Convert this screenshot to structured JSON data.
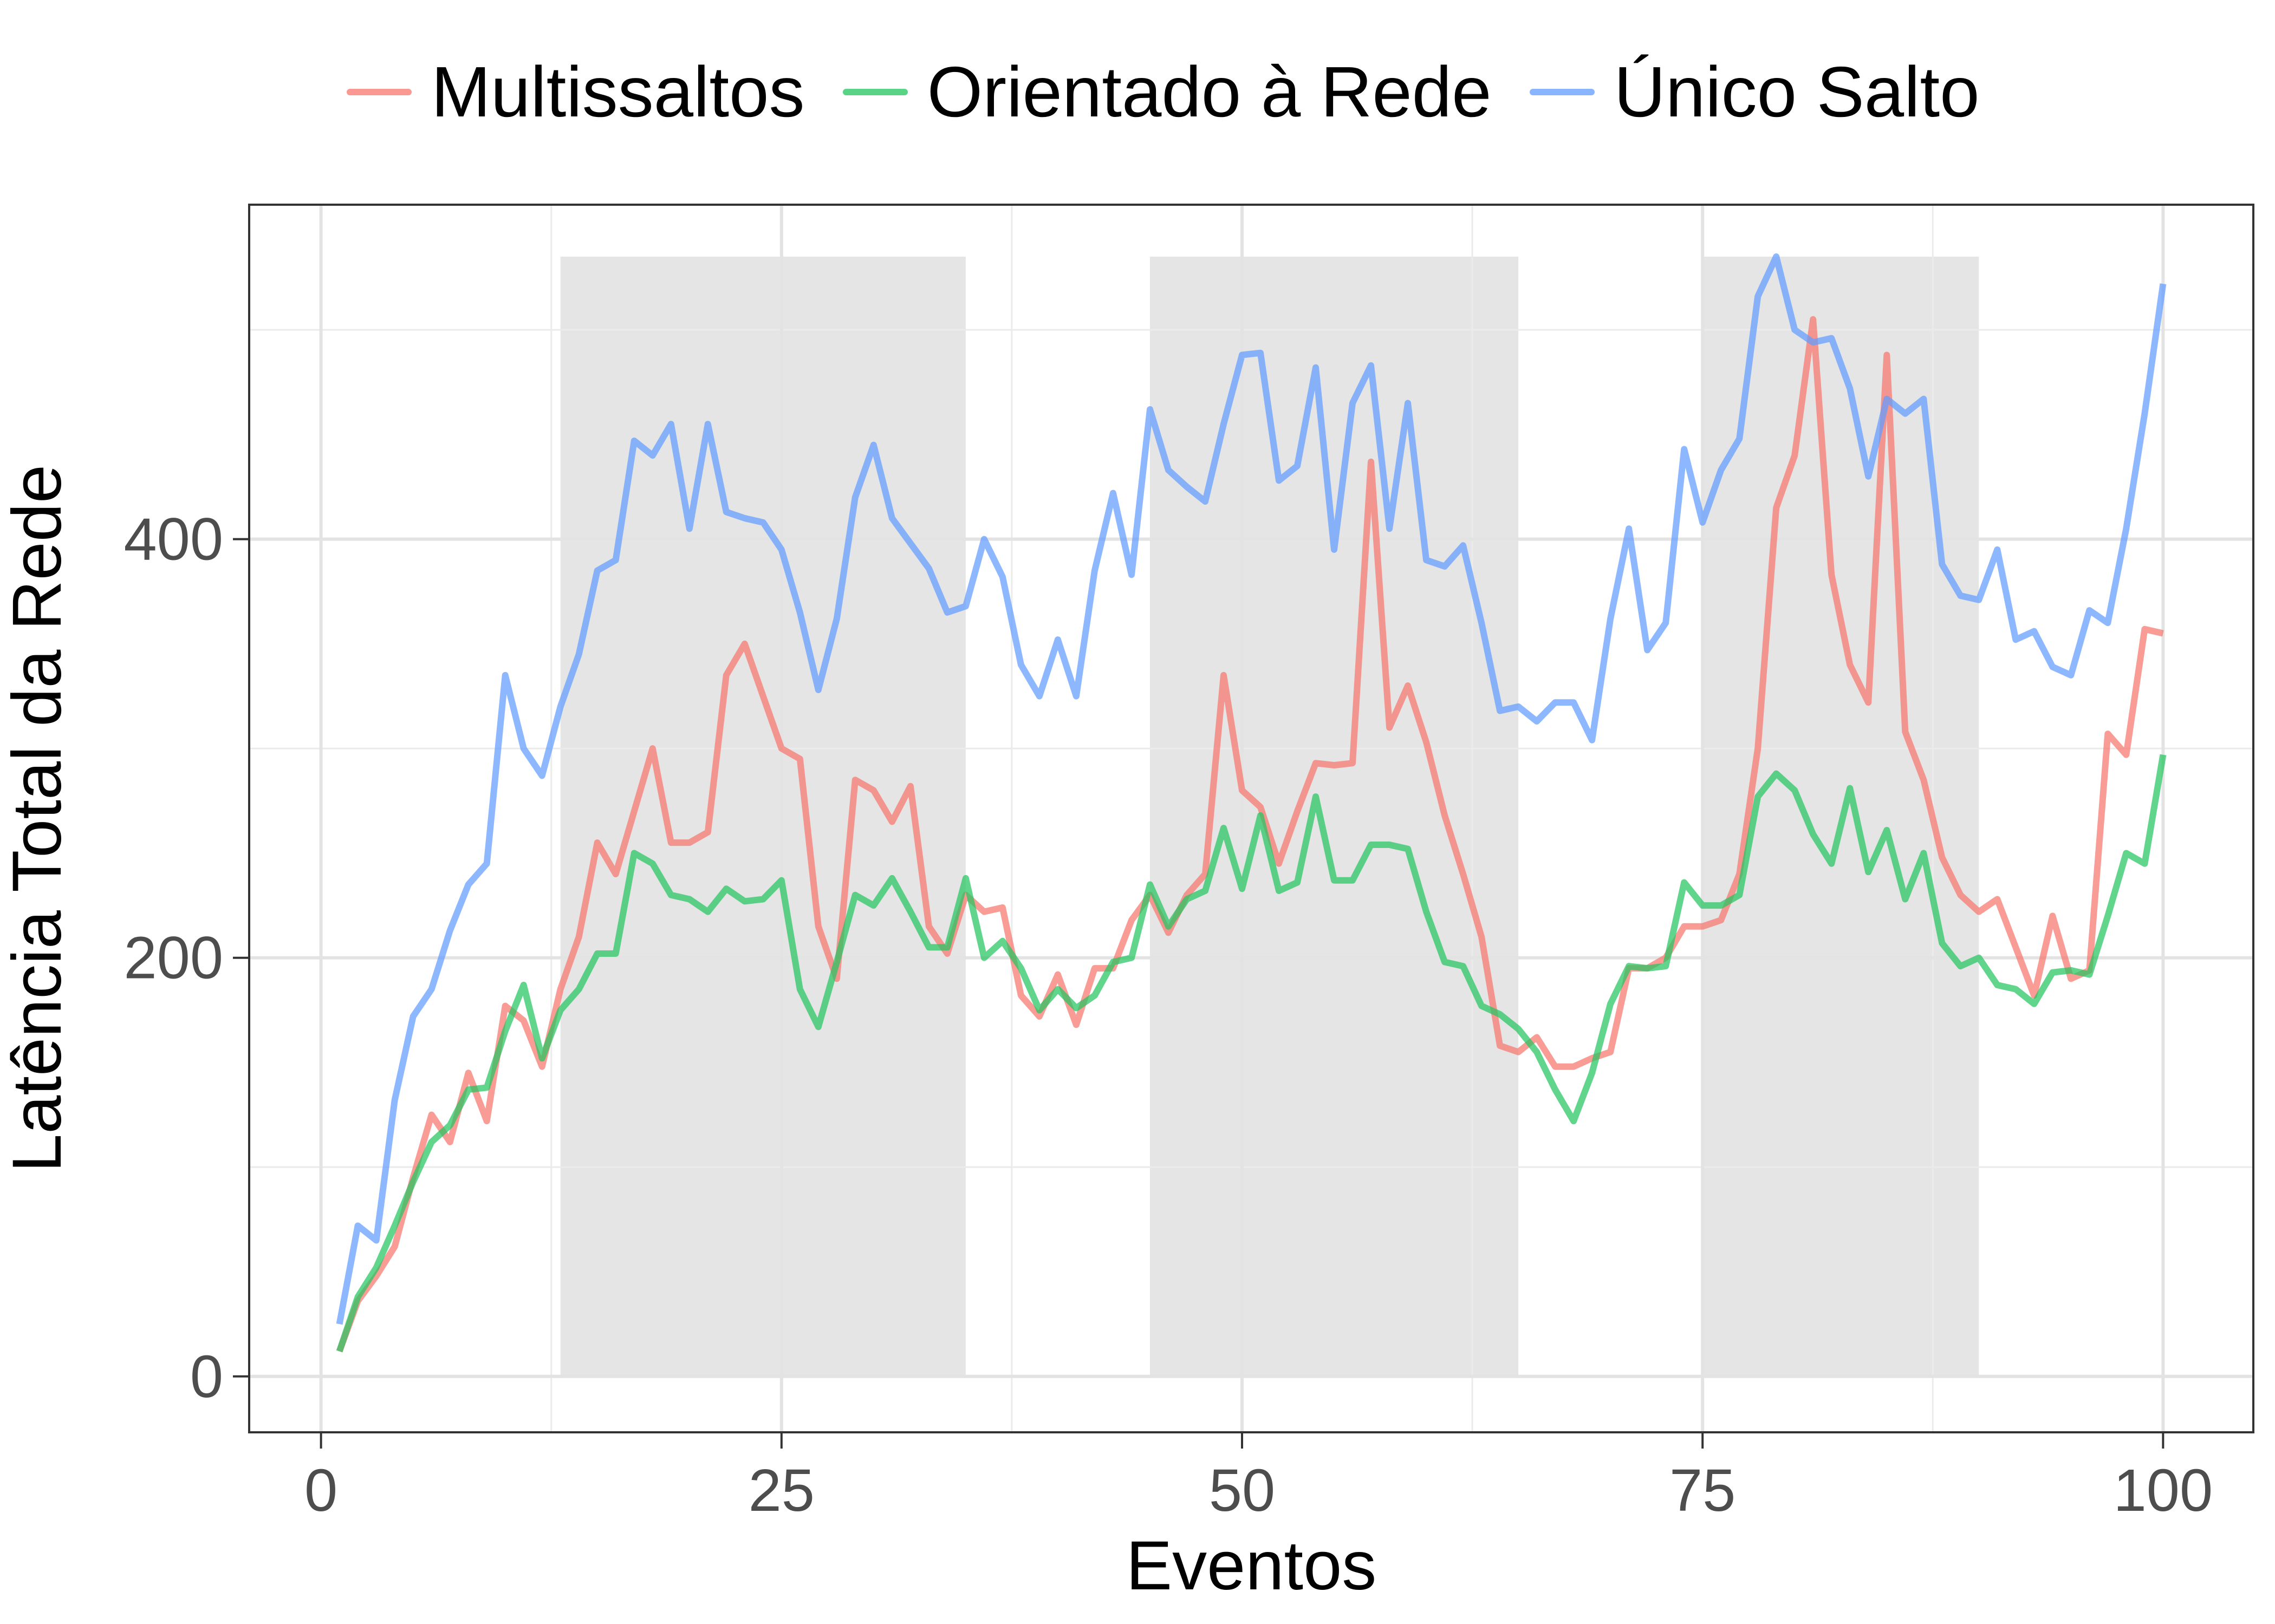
{
  "chart_data": {
    "type": "line",
    "xlabel": "Eventos",
    "ylabel": "Latência Total da Rede",
    "xlim": [
      -3.9,
      104.9
    ],
    "ylim": [
      -26.7,
      559.8
    ],
    "x_ticks": [
      "0",
      "25",
      "50",
      "75",
      "100"
    ],
    "x_tick_values": [
      0,
      25,
      50,
      75,
      100
    ],
    "y_ticks": [
      "0",
      "200",
      "400"
    ],
    "y_tick_values": [
      0,
      200,
      400
    ],
    "grid": true,
    "legend_position": "top",
    "shaded_regions": [
      [
        13,
        35
      ],
      [
        45,
        65
      ],
      [
        75,
        90
      ]
    ],
    "shaded_color": "#e5e5e5",
    "series": [
      {
        "name": "Multissaltos",
        "color": "#f8766d",
        "x": [
          1,
          2,
          3,
          4,
          5,
          6,
          7,
          8,
          9,
          10,
          11,
          12,
          13,
          14,
          15,
          16,
          17,
          18,
          19,
          20,
          21,
          22,
          23,
          24,
          25,
          26,
          27,
          28,
          29,
          30,
          31,
          32,
          33,
          34,
          35,
          36,
          37,
          38,
          39,
          40,
          41,
          42,
          43,
          44,
          45,
          46,
          47,
          48,
          49,
          50,
          51,
          52,
          53,
          54,
          55,
          56,
          57,
          58,
          59,
          60,
          61,
          62,
          63,
          64,
          65,
          66,
          67,
          68,
          69,
          70,
          71,
          72,
          73,
          74,
          75,
          76,
          77,
          78,
          79,
          80,
          81,
          82,
          83,
          84,
          85,
          86,
          87,
          88,
          89,
          90,
          91,
          92,
          93,
          94,
          95,
          96,
          97,
          98,
          99,
          100
        ],
        "values": [
          12,
          36,
          48,
          62,
          95,
          125,
          112,
          145,
          122,
          177,
          170,
          148,
          185,
          210,
          255,
          240,
          270,
          300,
          255,
          255,
          260,
          335,
          350,
          325,
          300,
          295,
          215,
          190,
          285,
          280,
          265,
          282,
          215,
          202,
          230,
          222,
          224,
          182,
          172,
          192,
          168,
          195,
          195,
          218,
          230,
          212,
          230,
          240,
          335,
          280,
          272,
          245,
          270,
          293,
          292,
          293,
          437,
          310,
          330,
          303,
          268,
          240,
          210,
          158,
          155,
          162,
          148,
          148,
          152,
          155,
          195,
          195,
          200,
          215,
          215,
          218,
          240,
          300,
          415,
          440,
          505,
          383,
          340,
          322,
          488,
          308,
          285,
          248,
          230,
          222,
          228,
          205,
          182,
          220,
          190,
          194,
          307,
          297,
          357,
          355
        ]
      },
      {
        "name": "Orientado à Rede",
        "color": "#22c55e",
        "x": [
          1,
          2,
          3,
          4,
          5,
          6,
          7,
          8,
          9,
          10,
          11,
          12,
          13,
          14,
          15,
          16,
          17,
          18,
          19,
          20,
          21,
          22,
          23,
          24,
          25,
          26,
          27,
          28,
          29,
          30,
          31,
          32,
          33,
          34,
          35,
          36,
          37,
          38,
          39,
          40,
          41,
          42,
          43,
          44,
          45,
          46,
          47,
          48,
          49,
          50,
          51,
          52,
          53,
          54,
          55,
          56,
          57,
          58,
          59,
          60,
          61,
          62,
          63,
          64,
          65,
          66,
          67,
          68,
          69,
          70,
          71,
          72,
          73,
          74,
          75,
          76,
          77,
          78,
          79,
          80,
          81,
          82,
          83,
          84,
          85,
          86,
          87,
          88,
          89,
          90,
          91,
          92,
          93,
          94,
          95,
          96,
          97,
          98,
          99,
          100
        ],
        "values": [
          12,
          38,
          52,
          72,
          93,
          112,
          120,
          137,
          138,
          165,
          187,
          152,
          175,
          185,
          202,
          202,
          250,
          245,
          230,
          228,
          222,
          233,
          227,
          228,
          237,
          185,
          167,
          198,
          230,
          225,
          238,
          222,
          205,
          205,
          238,
          200,
          208,
          195,
          175,
          185,
          176,
          182,
          198,
          200,
          235,
          215,
          228,
          232,
          262,
          233,
          268,
          232,
          236,
          277,
          237,
          237,
          254,
          254,
          252,
          222,
          198,
          196,
          177,
          173,
          166,
          155,
          137,
          122,
          145,
          178,
          196,
          195,
          196,
          236,
          225,
          225,
          230,
          277,
          288,
          280,
          259,
          245,
          281,
          241,
          261,
          228,
          250,
          207,
          196,
          200,
          187,
          185,
          178,
          193,
          194,
          192,
          220,
          250,
          245,
          297
        ]
      },
      {
        "name": "Único Salto",
        "color": "#619cff",
        "x": [
          1,
          2,
          3,
          4,
          5,
          6,
          7,
          8,
          9,
          10,
          11,
          12,
          13,
          14,
          15,
          16,
          17,
          18,
          19,
          20,
          21,
          22,
          23,
          24,
          25,
          26,
          27,
          28,
          29,
          30,
          31,
          32,
          33,
          34,
          35,
          36,
          37,
          38,
          39,
          40,
          41,
          42,
          43,
          44,
          45,
          46,
          47,
          48,
          49,
          50,
          51,
          52,
          53,
          54,
          55,
          56,
          57,
          58,
          59,
          60,
          61,
          62,
          63,
          64,
          65,
          66,
          67,
          68,
          69,
          70,
          71,
          72,
          73,
          74,
          75,
          76,
          77,
          78,
          79,
          80,
          81,
          82,
          83,
          84,
          85,
          86,
          87,
          88,
          89,
          90,
          91,
          92,
          93,
          94,
          95,
          96,
          97,
          98,
          99,
          100
        ],
        "values": [
          25,
          72,
          65,
          132,
          172,
          185,
          213,
          235,
          245,
          335,
          300,
          287,
          320,
          345,
          385,
          390,
          447,
          440,
          455,
          405,
          455,
          413,
          410,
          408,
          395,
          365,
          328,
          362,
          420,
          445,
          410,
          398,
          386,
          365,
          368,
          400,
          382,
          340,
          325,
          352,
          325,
          385,
          422,
          383,
          462,
          433,
          425,
          418,
          455,
          488,
          489,
          428,
          435,
          482,
          395,
          465,
          483,
          405,
          465,
          390,
          387,
          397,
          360,
          318,
          320,
          313,
          322,
          322,
          304,
          362,
          405,
          347,
          360,
          443,
          408,
          433,
          448,
          516,
          535,
          500,
          494,
          496,
          472,
          430,
          467,
          460,
          467,
          388,
          373,
          371,
          395,
          352,
          356,
          339,
          335,
          366,
          360,
          405,
          460,
          522
        ]
      }
    ]
  }
}
